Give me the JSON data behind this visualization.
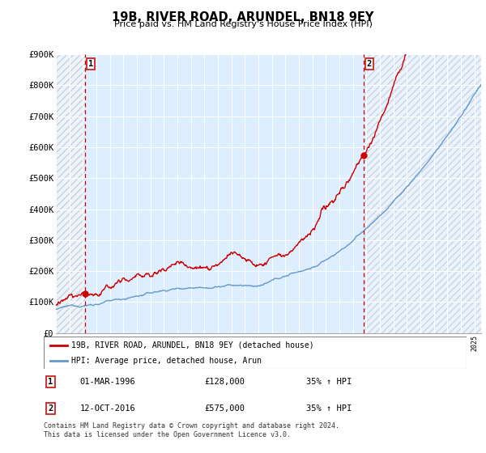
{
  "title": "19B, RIVER ROAD, ARUNDEL, BN18 9EY",
  "subtitle": "Price paid vs. HM Land Registry's House Price Index (HPI)",
  "ylim": [
    0,
    900000
  ],
  "yticks": [
    0,
    100000,
    200000,
    300000,
    400000,
    500000,
    600000,
    700000,
    800000,
    900000
  ],
  "ytick_labels": [
    "£0",
    "£100K",
    "£200K",
    "£300K",
    "£400K",
    "£500K",
    "£600K",
    "£700K",
    "£800K",
    "£900K"
  ],
  "sale1_year": 1996.17,
  "sale1_price": 128000,
  "sale1_label": "1",
  "sale1_date_str": "01-MAR-1996",
  "sale1_hpi_pct": "35% ↑ HPI",
  "sale2_year": 2016.78,
  "sale2_price": 575000,
  "sale2_label": "2",
  "sale2_date_str": "12-OCT-2016",
  "sale2_hpi_pct": "35% ↑ HPI",
  "legend_entry1": "19B, RIVER ROAD, ARUNDEL, BN18 9EY (detached house)",
  "legend_entry2": "HPI: Average price, detached house, Arun",
  "footnote1": "Contains HM Land Registry data © Crown copyright and database right 2024.",
  "footnote2": "This data is licensed under the Open Government Licence v3.0.",
  "line_color_red": "#cc0000",
  "line_color_blue": "#6699cc",
  "bg_color": "#ddeeff",
  "grid_color": "#ffffff",
  "xmin": 1994.0,
  "xmax": 2025.5,
  "price1_str": "£128,000",
  "price2_str": "£575,000"
}
